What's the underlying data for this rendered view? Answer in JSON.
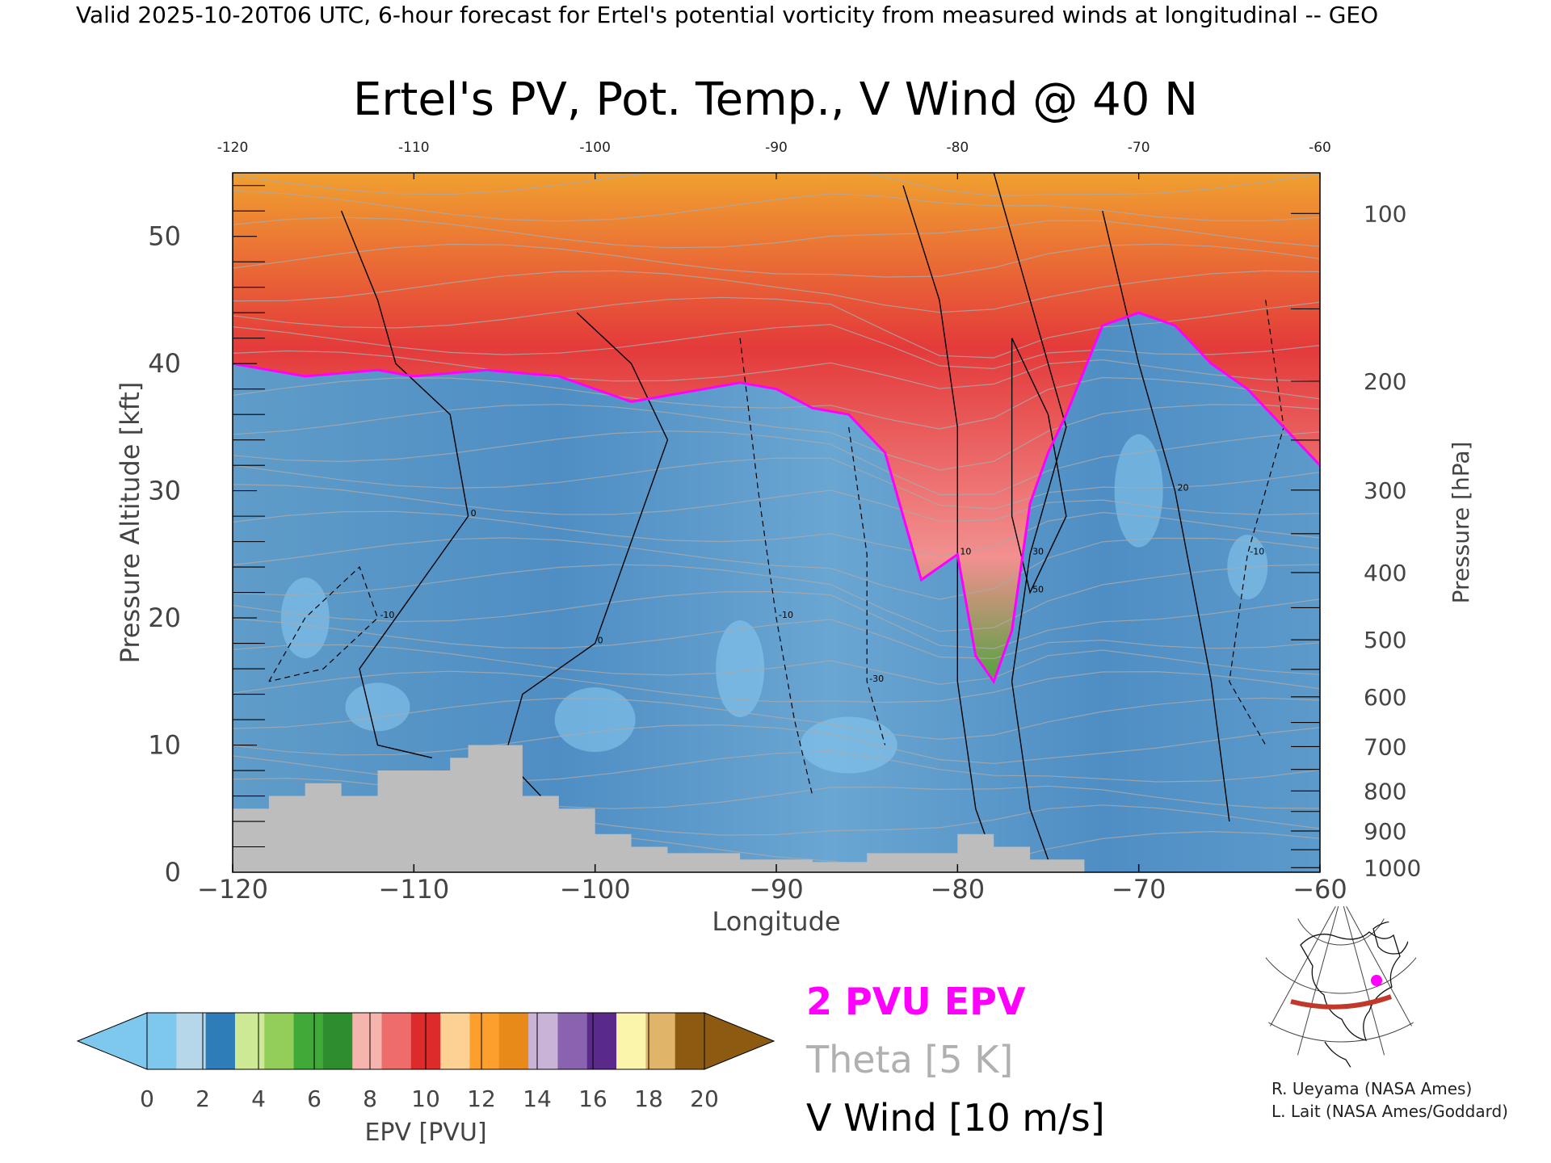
{
  "header": "Valid 2025-10-20T06 UTC, 6-hour forecast for Ertel's potential vorticity from measured winds at longitudinal -- GEO",
  "chart_data": {
    "type": "heatmap",
    "title": "Ertel's PV, Pot. Temp., V Wind @ 40 N",
    "xlabel": "Longitude",
    "ylabel_left": "Pressure Altitude [kft]",
    "ylabel_right": "Pressure [hPa]",
    "xlim": [
      -120,
      -60
    ],
    "ylim_kft": [
      0,
      55
    ],
    "x_ticks": [
      "-120",
      "-110",
      "-100",
      "-90",
      "-80",
      "-70",
      "-60"
    ],
    "x_ticks_top": [
      "-120",
      "-110",
      "-100",
      "-90",
      "-80",
      "-70",
      "-60"
    ],
    "y_ticks_left": [
      "0",
      "10",
      "20",
      "30",
      "40",
      "50"
    ],
    "y_ticks_right": [
      {
        "p": 100,
        "label": "100"
      },
      {
        "p": 200,
        "label": "200"
      },
      {
        "p": 300,
        "label": "300"
      },
      {
        "p": 400,
        "label": "400"
      },
      {
        "p": 500,
        "label": "500"
      },
      {
        "p": 600,
        "label": "600"
      },
      {
        "p": 700,
        "label": "700"
      },
      {
        "p": 800,
        "label": "800"
      },
      {
        "p": 900,
        "label": "900"
      },
      {
        "p": 1000,
        "label": "1000"
      }
    ],
    "tropopause_2pvu_kft": [
      [
        -120,
        40
      ],
      [
        -116,
        39
      ],
      [
        -112,
        39.5
      ],
      [
        -110,
        39
      ],
      [
        -106,
        39.5
      ],
      [
        -102,
        39
      ],
      [
        -98,
        37
      ],
      [
        -94,
        38
      ],
      [
        -92,
        38.5
      ],
      [
        -90,
        38
      ],
      [
        -88,
        36.5
      ],
      [
        -86,
        36
      ],
      [
        -84,
        33
      ],
      [
        -82,
        23
      ],
      [
        -80,
        25
      ],
      [
        -79,
        17
      ],
      [
        -78,
        15
      ],
      [
        -77,
        19
      ],
      [
        -76,
        29
      ],
      [
        -75,
        33
      ],
      [
        -74,
        36
      ],
      [
        -72,
        43
      ],
      [
        -70,
        44
      ],
      [
        -68,
        43
      ],
      [
        -66,
        40
      ],
      [
        -64,
        38
      ],
      [
        -62,
        35
      ],
      [
        -60,
        32
      ]
    ],
    "v_wind_contours": [
      {
        "label": "0",
        "points": [
          [
            -114,
            52
          ],
          [
            -112,
            45
          ],
          [
            -111,
            40
          ],
          [
            -108,
            36
          ],
          [
            -107,
            28
          ],
          [
            -110,
            22
          ],
          [
            -113,
            16
          ],
          [
            -112,
            10
          ],
          [
            -109,
            9
          ]
        ]
      },
      {
        "label": "0",
        "points": [
          [
            -101,
            44
          ],
          [
            -98,
            40
          ],
          [
            -96,
            34
          ],
          [
            -98,
            26
          ],
          [
            -100,
            18
          ],
          [
            -104,
            14
          ],
          [
            -105,
            9
          ],
          [
            -103,
            6
          ]
        ]
      },
      {
        "label": "10",
        "points": [
          [
            -83,
            54
          ],
          [
            -81,
            45
          ],
          [
            -80,
            35
          ],
          [
            -80,
            25
          ],
          [
            -80,
            15
          ],
          [
            -79,
            5
          ],
          [
            -78,
            1
          ]
        ]
      },
      {
        "label": "30",
        "points": [
          [
            -78,
            55
          ],
          [
            -76,
            45
          ],
          [
            -74,
            35
          ],
          [
            -76,
            25
          ],
          [
            -77,
            15
          ],
          [
            -76,
            5
          ],
          [
            -75,
            1
          ]
        ]
      },
      {
        "label": "50",
        "points": [
          [
            -77,
            42
          ],
          [
            -75,
            36
          ],
          [
            -74,
            28
          ],
          [
            -76,
            22
          ],
          [
            -77,
            28
          ],
          [
            -77,
            36
          ],
          [
            -77,
            42
          ]
        ]
      },
      {
        "label": "20",
        "points": [
          [
            -72,
            52
          ],
          [
            -70,
            40
          ],
          [
            -68,
            30
          ],
          [
            -66,
            15
          ],
          [
            -65,
            4
          ]
        ]
      }
    ],
    "v_wind_negative_contours": [
      {
        "label": "-10",
        "points": [
          [
            -118,
            15
          ],
          [
            -116,
            20
          ],
          [
            -113,
            24
          ],
          [
            -112,
            20
          ],
          [
            -115,
            16
          ],
          [
            -118,
            15
          ]
        ]
      },
      {
        "label": "-10",
        "points": [
          [
            -92,
            42
          ],
          [
            -91,
            30
          ],
          [
            -90,
            20
          ],
          [
            -89,
            12
          ],
          [
            -88,
            6
          ]
        ]
      },
      {
        "label": "-30",
        "points": [
          [
            -86,
            35
          ],
          [
            -85,
            25
          ],
          [
            -85,
            15
          ],
          [
            -84,
            10
          ]
        ]
      },
      {
        "label": "-10",
        "points": [
          [
            -63,
            45
          ],
          [
            -62,
            35
          ],
          [
            -64,
            25
          ],
          [
            -65,
            15
          ],
          [
            -63,
            10
          ]
        ]
      }
    ],
    "surface_terrain_kft": [
      [
        -120,
        5
      ],
      [
        -119,
        5
      ],
      [
        -118,
        6
      ],
      [
        -116,
        7
      ],
      [
        -114,
        6
      ],
      [
        -113,
        6
      ],
      [
        -112,
        8
      ],
      [
        -109,
        8
      ],
      [
        -108,
        9
      ],
      [
        -107,
        10
      ],
      [
        -104,
        10
      ],
      [
        -104,
        6
      ],
      [
        -102,
        5
      ],
      [
        -100,
        3
      ],
      [
        -98,
        2
      ],
      [
        -96,
        1.5
      ],
      [
        -94,
        1.5
      ],
      [
        -92,
        1
      ],
      [
        -88,
        0.8
      ],
      [
        -85,
        1.5
      ],
      [
        -81,
        1.5
      ],
      [
        -80,
        3
      ],
      [
        -78,
        2
      ],
      [
        -76,
        1
      ],
      [
        -73,
        0
      ]
    ],
    "colorbar": {
      "label": "EPV [PVU]",
      "ticks": [
        "0",
        "2",
        "4",
        "6",
        "8",
        "10",
        "12",
        "14",
        "16",
        "18",
        "20"
      ],
      "colors": [
        "#7ec8ee",
        "#b6d7ea",
        "#2e7cb8",
        "#cde996",
        "#93ce5b",
        "#40a938",
        "#2e8d2d",
        "#f6b4ae",
        "#ee6c6a",
        "#dd2a2a",
        "#fdd093",
        "#fc9f2c",
        "#e78a1a",
        "#c9b4d8",
        "#8a63b0",
        "#5a2a8a",
        "#faf5aa",
        "#e0b56a",
        "#8c5a10"
      ]
    }
  },
  "legend": {
    "epv2": "2 PVU EPV",
    "theta": "Theta [5 K]",
    "vwind": "V Wind [10 m/s]",
    "epv2_color": "#ff00ff",
    "theta_color": "#aaaaaa",
    "vwind_color": "#000000"
  },
  "credits": {
    "line1": "R. Ueyama (NASA Ames)",
    "line2": "L. Lait (NASA Ames/Goddard)"
  },
  "inset_map": {
    "track_color": "#c0392b",
    "marker_color": "#ff00ff"
  }
}
